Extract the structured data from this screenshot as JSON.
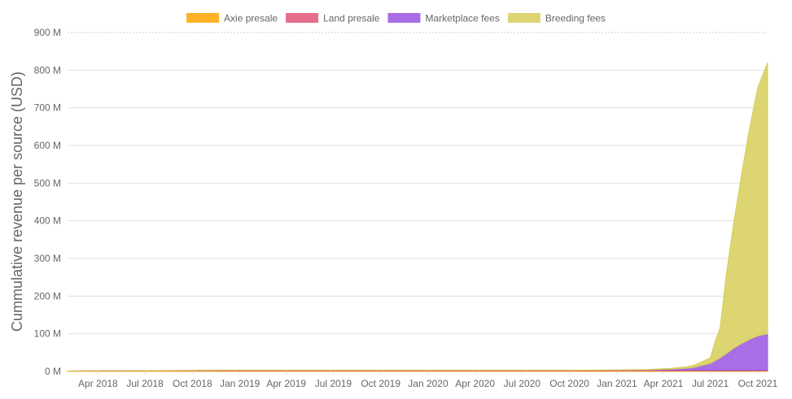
{
  "chart_data": {
    "type": "area",
    "stacked": true,
    "ylabel": "Cummulative revenue per source (USD)",
    "ylim": [
      0,
      900000000
    ],
    "y_ticks": [
      {
        "value": 0,
        "label": "0 M"
      },
      {
        "value": 100000000,
        "label": "100 M"
      },
      {
        "value": 200000000,
        "label": "200 M"
      },
      {
        "value": 300000000,
        "label": "300 M"
      },
      {
        "value": 400000000,
        "label": "400 M"
      },
      {
        "value": 500000000,
        "label": "500 M"
      },
      {
        "value": 600000000,
        "label": "600 M"
      },
      {
        "value": 700000000,
        "label": "700 M"
      },
      {
        "value": 800000000,
        "label": "800 M"
      },
      {
        "value": 900000000,
        "label": "900 M"
      }
    ],
    "xlim": [
      "2018-02-01",
      "2021-10-20"
    ],
    "x_ticks": [
      {
        "date": "2018-04-01",
        "label": "Apr 2018"
      },
      {
        "date": "2018-07-01",
        "label": "Jul 2018"
      },
      {
        "date": "2018-10-01",
        "label": "Oct 2018"
      },
      {
        "date": "2019-01-01",
        "label": "Jan 2019"
      },
      {
        "date": "2019-04-01",
        "label": "Apr 2019"
      },
      {
        "date": "2019-07-01",
        "label": "Jul 2019"
      },
      {
        "date": "2019-10-01",
        "label": "Oct 2019"
      },
      {
        "date": "2020-01-01",
        "label": "Jan 2020"
      },
      {
        "date": "2020-04-01",
        "label": "Apr 2020"
      },
      {
        "date": "2020-07-01",
        "label": "Jul 2020"
      },
      {
        "date": "2020-10-01",
        "label": "Oct 2020"
      },
      {
        "date": "2021-01-01",
        "label": "Jan 2021"
      },
      {
        "date": "2021-04-01",
        "label": "Apr 2021"
      },
      {
        "date": "2021-07-01",
        "label": "Jul 2021"
      },
      {
        "date": "2021-10-01",
        "label": "Oct 2021"
      }
    ],
    "grid": true,
    "legend_position": "top",
    "x": [
      "2018-02-01",
      "2018-06-01",
      "2018-10-01",
      "2019-02-01",
      "2019-06-01",
      "2019-10-01",
      "2020-02-01",
      "2020-06-01",
      "2020-10-01",
      "2021-01-01",
      "2021-03-01",
      "2021-04-15",
      "2021-05-15",
      "2021-06-01",
      "2021-06-15",
      "2021-07-01",
      "2021-07-10",
      "2021-07-20",
      "2021-08-01",
      "2021-08-15",
      "2021-09-01",
      "2021-09-15",
      "2021-10-01",
      "2021-10-20"
    ],
    "series": [
      {
        "name": "Axie presale",
        "color": "#ffa500",
        "values": [
          1000000,
          1500000,
          1500000,
          1500000,
          1500000,
          1500000,
          1500000,
          1500000,
          1500000,
          1500000,
          1500000,
          1500000,
          1500000,
          1500000,
          1500000,
          1500000,
          1500000,
          1500000,
          1500000,
          1500000,
          1500000,
          1500000,
          1500000,
          1500000
        ]
      },
      {
        "name": "Land presale",
        "color": "#e05577",
        "values": [
          0,
          500000,
          1000000,
          1500000,
          1500000,
          1500000,
          1500000,
          1500000,
          1500000,
          1500000,
          1500000,
          1500000,
          1500000,
          1500000,
          1500000,
          1500000,
          1500000,
          1500000,
          1500000,
          1500000,
          1500000,
          1500000,
          1500000,
          1500000
        ]
      },
      {
        "name": "Marketplace fees",
        "color": "#9a55e0",
        "values": [
          0,
          0,
          0,
          0,
          0,
          0,
          0,
          0,
          0,
          500000,
          1000000,
          3000000,
          5000000,
          8000000,
          13000000,
          18000000,
          25000000,
          33000000,
          44000000,
          58000000,
          72000000,
          82000000,
          91000000,
          97000000
        ]
      },
      {
        "name": "Breeding fees",
        "color": "#d6ce58",
        "values": [
          0,
          0,
          0,
          0,
          0,
          0,
          0,
          0,
          0,
          500000,
          1000000,
          2000000,
          4000000,
          6000000,
          10000000,
          15000000,
          50000000,
          80000000,
          210000000,
          330000000,
          460000000,
          560000000,
          660000000,
          720000000
        ]
      }
    ]
  }
}
